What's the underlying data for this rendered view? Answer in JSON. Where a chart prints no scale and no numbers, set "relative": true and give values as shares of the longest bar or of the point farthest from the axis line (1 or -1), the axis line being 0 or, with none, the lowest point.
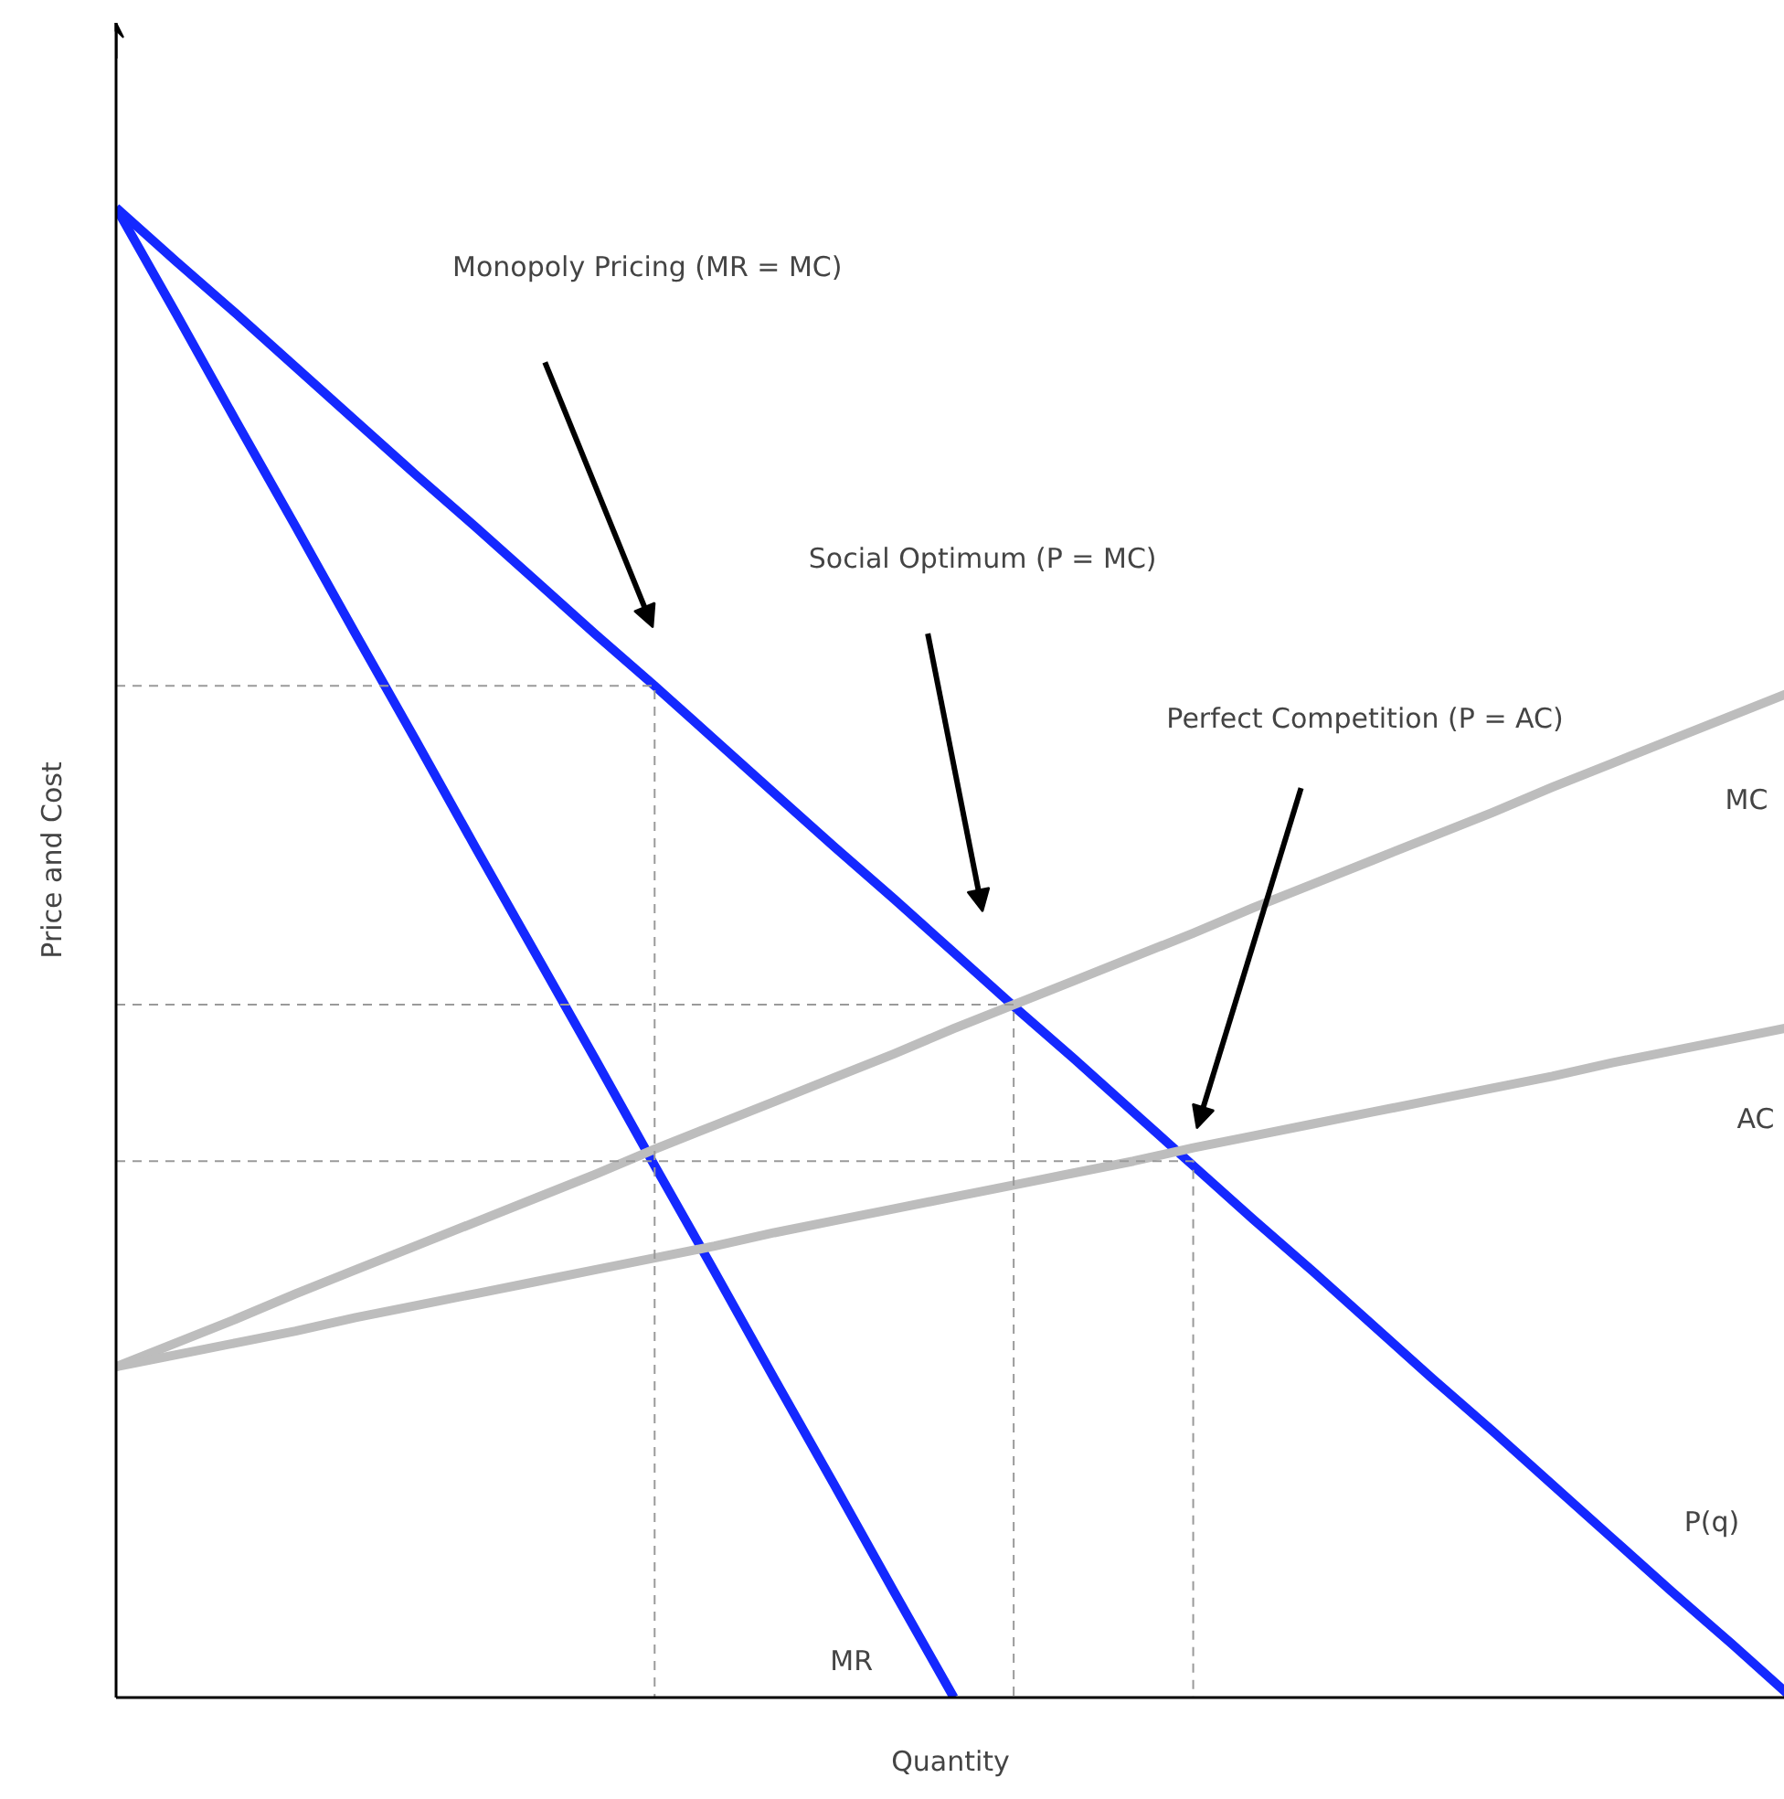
{
  "chart_data": {
    "type": "line",
    "relative": true,
    "xlabel": "Quantity",
    "ylabel": "Price and Cost",
    "grid": false,
    "legend": false,
    "categories": [
      null,
      null,
      null,
      null,
      null,
      null,
      null,
      null,
      null,
      null,
      null,
      null,
      null,
      null,
      null,
      null,
      null,
      null,
      null,
      null,
      null,
      null,
      null,
      null,
      null,
      null,
      null,
      null,
      null
    ],
    "series": [
      {
        "name": "P(q)",
        "color": "#1428ff",
        "values": [
          1,
          0.964,
          0.929,
          0.893,
          0.857,
          0.821,
          0.786,
          0.75,
          0.714,
          0.679,
          0.643,
          0.607,
          0.571,
          0.536,
          0.5,
          0.464,
          0.429,
          0.393,
          0.357,
          0.321,
          0.286,
          0.25,
          0.214,
          0.179,
          0.143,
          0.107,
          0.071,
          0.036,
          0
        ]
      },
      {
        "name": "MR",
        "color": "#1428ff",
        "values": [
          1,
          0.929,
          0.857,
          0.786,
          0.714,
          0.643,
          0.571,
          0.5,
          0.429,
          0.357,
          0.286,
          0.214,
          0.143,
          0.071,
          0,
          null,
          null,
          null,
          null,
          null,
          null,
          null,
          null,
          null,
          null,
          null,
          null,
          null,
          null
        ]
      },
      {
        "name": "MC",
        "color": "#bdbdbd",
        "values": [
          0.222,
          0.238,
          0.254,
          0.271,
          0.287,
          0.303,
          0.319,
          0.335,
          0.351,
          0.368,
          0.384,
          0.4,
          0.416,
          0.432,
          0.449,
          0.465,
          0.481,
          0.497,
          0.513,
          0.53,
          0.546,
          0.562,
          0.578,
          0.594,
          0.611,
          0.627,
          0.643,
          0.659,
          0.675
        ]
      },
      {
        "name": "AC",
        "color": "#bdbdbd",
        "values": [
          0.222,
          0.23,
          0.238,
          0.246,
          0.255,
          0.263,
          0.271,
          0.279,
          0.287,
          0.295,
          0.303,
          0.312,
          0.32,
          0.328,
          0.336,
          0.344,
          0.352,
          0.36,
          0.369,
          0.377,
          0.385,
          0.393,
          0.401,
          0.409,
          0.417,
          0.426,
          0.434,
          0.442,
          0.45
        ]
      },
      {
        "type": "step",
        "color": "#9a9a9a",
        "line_style": "dashed",
        "values": [
          0.679,
          0.679,
          0.679,
          0.679,
          0.679,
          0.679,
          0.679,
          0.679,
          0.679,
          0.679,
          0,
          null,
          null,
          null,
          null,
          null,
          null,
          null,
          null,
          null,
          null,
          null,
          null,
          null,
          null,
          null,
          null,
          null,
          null
        ]
      },
      {
        "type": "step",
        "color": "#9a9a9a",
        "line_style": "dashed",
        "values": [
          0.465,
          0.465,
          0.465,
          0.465,
          0.465,
          0.465,
          0.465,
          0.465,
          0.465,
          0.465,
          0.465,
          0.465,
          0.465,
          0.465,
          0.465,
          0.465,
          0,
          null,
          null,
          null,
          null,
          null,
          null,
          null,
          null,
          null,
          null,
          null,
          null
        ]
      },
      {
        "type": "step",
        "color": "#9a9a9a",
        "line_style": "dashed",
        "values": [
          0.36,
          0.36,
          0.36,
          0.36,
          0.36,
          0.36,
          0.36,
          0.36,
          0.36,
          0.36,
          0.36,
          0.36,
          0.36,
          0.36,
          0.36,
          0.36,
          0.36,
          0.36,
          0.36,
          0,
          null,
          null,
          null,
          null,
          null,
          null,
          null,
          null,
          null
        ]
      }
    ],
    "annotations": [
      "Monopoly Pricing (MR = MC)",
      "Social Optimum (P = MC)",
      "Perfect Competition (P = AC)"
    ]
  }
}
